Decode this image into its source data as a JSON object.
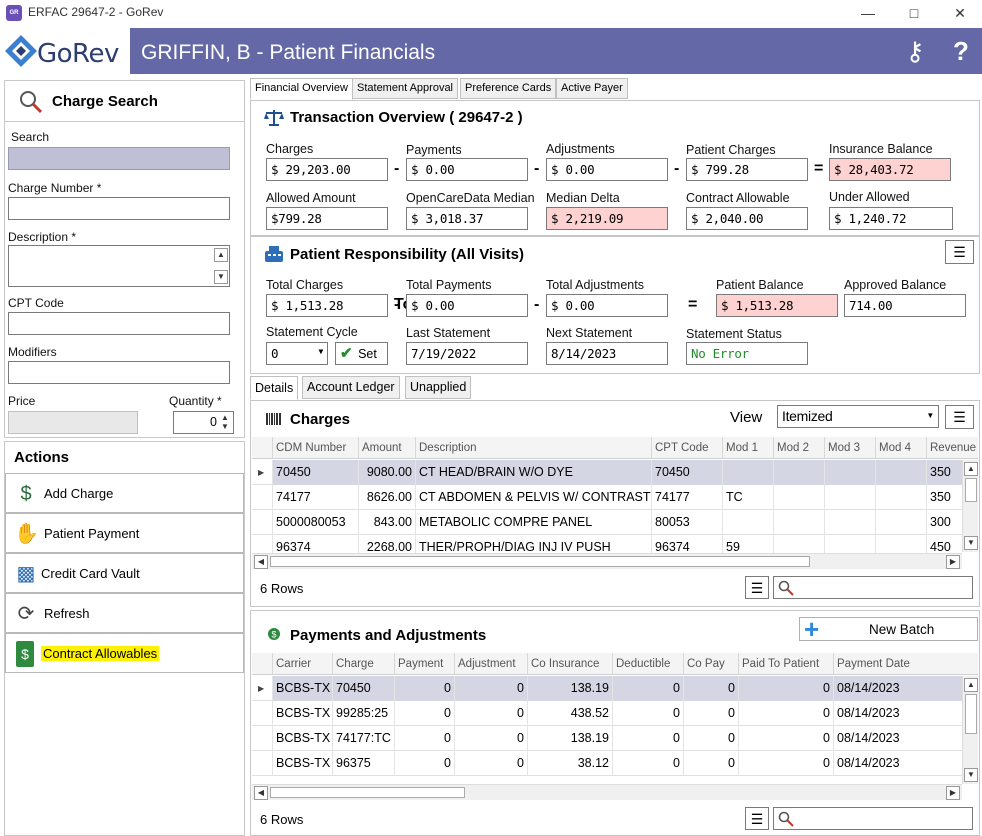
{
  "window": {
    "title": "ERFAC 29647-2 - GoRev",
    "app_icon": "GR"
  },
  "brand": {
    "logo_text": "GoRev",
    "banner_title": "GRIFFIN, B - Patient Financials",
    "banner_color": "#6468a6"
  },
  "left": {
    "header": "Charge Search",
    "search_label": "Search",
    "charge_number_label": "Charge Number *",
    "description_label": "Description *",
    "cpt_label": "CPT Code",
    "modifiers_label": "Modifiers",
    "price_label": "Price",
    "quantity_label": "Quantity *",
    "quantity_value": "0",
    "actions_header": "Actions",
    "actions": [
      {
        "label": "Add Charge",
        "icon": "dollar-plus-icon"
      },
      {
        "label": "Patient Payment",
        "icon": "hand-coin-icon"
      },
      {
        "label": "Credit Card Vault",
        "icon": "card-vault-icon"
      },
      {
        "label": "Refresh",
        "icon": "refresh-icon"
      },
      {
        "label": "Contract Allowables",
        "icon": "dollar-bill-icon"
      }
    ]
  },
  "tabs": [
    "Financial Overview",
    "Statement Approval",
    "Preference Cards",
    "Active Payer"
  ],
  "transaction": {
    "title": "Transaction Overview ( 29647-2 )",
    "charges_label": "Charges",
    "charges": "$ 29,203.00",
    "payments_label": "Payments",
    "payments": "$ 0.00",
    "adjustments_label": "Adjustments",
    "adjustments": "$ 0.00",
    "patient_charges_label": "Patient Charges",
    "patient_charges": "$ 799.28",
    "insurance_balance_label": "Insurance Balance",
    "insurance_balance": "$ 28,403.72",
    "allowed_label": "Allowed Amount",
    "allowed": "$799.28",
    "ocd_label": "OpenCareData Median",
    "ocd": "$ 3,018.37",
    "median_delta_label": "Median Delta",
    "median_delta": "$ 2,219.09",
    "contract_label": "Contract Allowable",
    "contract": "$ 2,040.00",
    "under_label": "Under Allowed",
    "under": "$ 1,240.72",
    "op_minus": "-",
    "op_equals": "="
  },
  "responsibility": {
    "title": "Patient Responsibility (All Visits)",
    "total_charges_label": "Total Charges",
    "total_charges": "$ 1,513.28",
    "total_payments_label": "Total Payments",
    "total_payments": "$ 0.00",
    "total_adjustments_label": "Total Adjustments",
    "total_adjustments": "$ 0.00",
    "patient_balance_label": "Patient Balance",
    "patient_balance": "$ 1,513.28",
    "approved_label": "Approved Balance",
    "approved": "714.00",
    "cycle_label": "Statement Cycle",
    "cycle": "0",
    "set_label": "Set",
    "last_label": "Last Statement",
    "last": "7/19/2022",
    "next_label": "Next Statement",
    "next": "8/14/2023",
    "status_label": "Statement Status",
    "status": "No Error"
  },
  "subtabs": [
    "Details",
    "Account Ledger",
    "Unapplied"
  ],
  "charges": {
    "title": "Charges",
    "view_label": "View",
    "view_value": "Itemized",
    "columns": [
      "CDM Number",
      "Amount",
      "Description",
      "CPT Code",
      "Mod 1",
      "Mod 2",
      "Mod 3",
      "Mod 4",
      "Revenue C"
    ],
    "rows": [
      [
        "70450",
        "9080.00",
        "CT HEAD/BRAIN W/O DYE",
        "70450",
        "",
        "",
        "",
        "",
        "350"
      ],
      [
        "74177",
        "8626.00",
        "CT ABDOMEN & PELVIS W/ CONTRAST",
        "74177",
        "TC",
        "",
        "",
        "",
        "350"
      ],
      [
        "5000080053",
        "843.00",
        "METABOLIC COMPRE PANEL",
        "80053",
        "",
        "",
        "",
        "",
        "300"
      ],
      [
        "96374",
        "2268.00",
        "THER/PROPH/DIAG INJ IV PUSH",
        "96374",
        "59",
        "",
        "",
        "",
        "450"
      ]
    ],
    "row_count": "6 Rows"
  },
  "payments": {
    "title": "Payments and Adjustments",
    "new_batch": "New Batch",
    "columns": [
      "Carrier",
      "Charge",
      "Payment",
      "Adjustment",
      "Co Insurance",
      "Deductible",
      "Co Pay",
      "Paid To Patient",
      "Payment Date"
    ],
    "rows": [
      [
        "BCBS-TX",
        "70450",
        "0",
        "0",
        "138.19",
        "0",
        "0",
        "0",
        "08/14/2023"
      ],
      [
        "BCBS-TX",
        "99285:25",
        "0",
        "0",
        "438.52",
        "0",
        "0",
        "0",
        "08/14/2023"
      ],
      [
        "BCBS-TX",
        "74177:TC",
        "0",
        "0",
        "138.19",
        "0",
        "0",
        "0",
        "08/14/2023"
      ],
      [
        "BCBS-TX",
        "96375",
        "0",
        "0",
        "38.12",
        "0",
        "0",
        "0",
        "08/14/2023"
      ]
    ],
    "row_count": "6 Rows"
  }
}
